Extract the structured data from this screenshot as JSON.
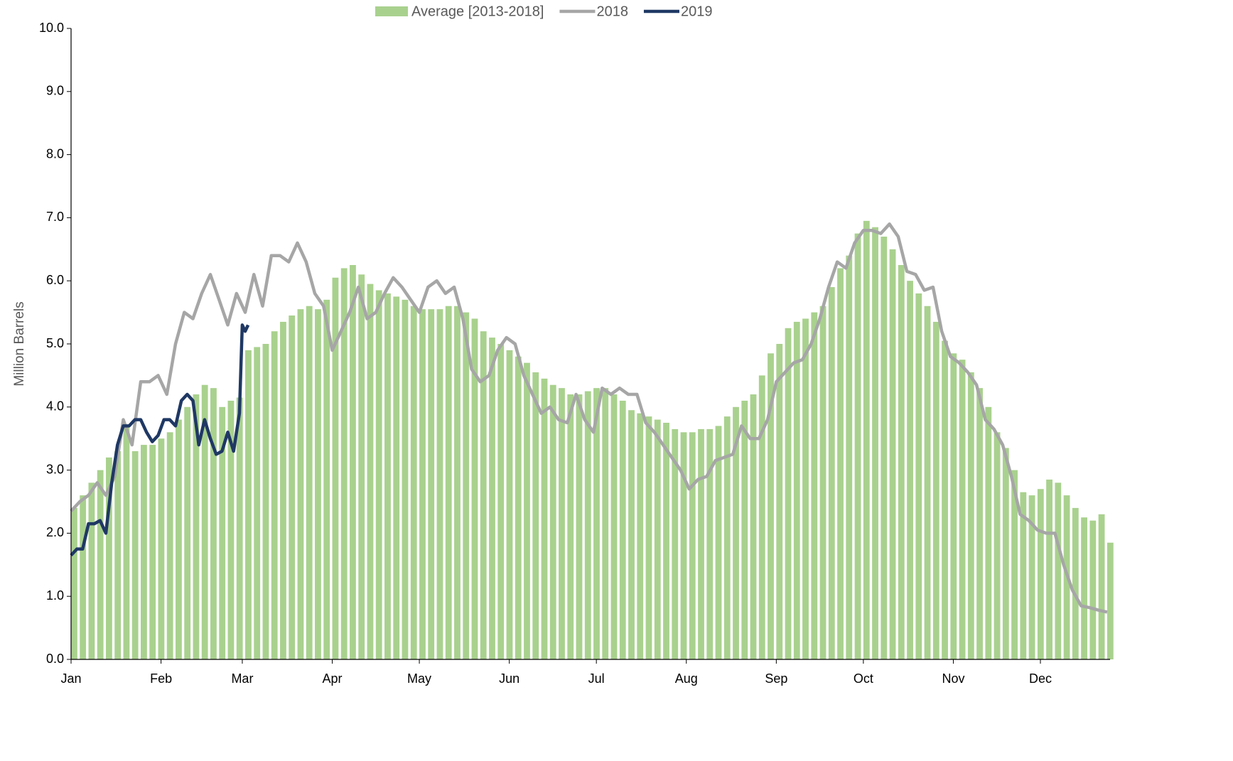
{
  "chart_data": {
    "type": "bar-line",
    "ylabel": "Million Barrels",
    "xlim": [
      0,
      358
    ],
    "xticks": [
      {
        "value": 0,
        "label": "Jan"
      },
      {
        "value": 31,
        "label": "Feb"
      },
      {
        "value": 59,
        "label": "Mar"
      },
      {
        "value": 90,
        "label": "Apr"
      },
      {
        "value": 120,
        "label": "May"
      },
      {
        "value": 151,
        "label": "Jun"
      },
      {
        "value": 181,
        "label": "Jul"
      },
      {
        "value": 212,
        "label": "Aug"
      },
      {
        "value": 243,
        "label": "Sep"
      },
      {
        "value": 273,
        "label": "Oct"
      },
      {
        "value": 304,
        "label": "Nov"
      },
      {
        "value": 334,
        "label": "Dec"
      }
    ],
    "ylim": [
      0,
      10
    ],
    "yticks": [
      {
        "value": 0,
        "label": "0.0"
      },
      {
        "value": 1,
        "label": "1.0"
      },
      {
        "value": 2,
        "label": "2.0"
      },
      {
        "value": 3,
        "label": "3.0"
      },
      {
        "value": 4,
        "label": "4.0"
      },
      {
        "value": 5,
        "label": "5.0"
      },
      {
        "value": 6,
        "label": "6.0"
      },
      {
        "value": 7,
        "label": "7.0"
      },
      {
        "value": 8,
        "label": "8.0"
      },
      {
        "value": 9,
        "label": "9.0"
      },
      {
        "value": 10,
        "label": "10.0"
      }
    ],
    "grid": false,
    "legend": "top",
    "series": [
      {
        "name": "Average [2013-2018]",
        "kind": "bar",
        "color": "#a9d18e",
        "x": [
          0,
          3,
          6,
          9,
          12,
          15,
          18,
          21,
          24,
          27,
          30,
          33,
          36,
          39,
          42,
          45,
          48,
          51,
          54,
          57,
          60,
          63,
          66,
          69,
          72,
          75,
          78,
          81,
          84,
          87,
          90,
          93,
          96,
          99,
          102,
          105,
          108,
          111,
          114,
          117,
          120,
          123,
          126,
          129,
          132,
          135,
          138,
          141,
          144,
          147,
          150,
          153,
          156,
          159,
          162,
          165,
          168,
          171,
          174,
          177,
          180,
          183,
          186,
          189,
          192,
          195,
          198,
          201,
          204,
          207,
          210,
          213,
          216,
          219,
          222,
          225,
          228,
          231,
          234,
          237,
          240,
          243,
          246,
          249,
          252,
          255,
          258,
          261,
          264,
          267,
          270,
          273,
          276,
          279,
          282,
          285,
          288,
          291,
          294,
          297,
          300,
          303,
          306,
          309,
          312,
          315,
          318,
          321,
          324,
          327,
          330,
          333,
          336,
          339,
          342,
          345,
          348,
          351,
          354,
          357
        ],
        "values": [
          2.4,
          2.6,
          2.8,
          3.0,
          3.2,
          3.3,
          3.7,
          3.3,
          3.4,
          3.4,
          3.5,
          3.6,
          3.8,
          4.0,
          4.2,
          4.35,
          4.3,
          4.0,
          4.1,
          4.15,
          4.9,
          4.95,
          5.0,
          5.2,
          5.35,
          5.45,
          5.55,
          5.6,
          5.55,
          5.7,
          6.05,
          6.2,
          6.25,
          6.1,
          5.95,
          5.85,
          5.8,
          5.75,
          5.7,
          5.6,
          5.55,
          5.55,
          5.55,
          5.6,
          5.6,
          5.5,
          5.4,
          5.2,
          5.1,
          5.0,
          4.9,
          4.8,
          4.7,
          4.55,
          4.45,
          4.35,
          4.3,
          4.2,
          4.2,
          4.25,
          4.3,
          4.3,
          4.2,
          4.1,
          3.95,
          3.9,
          3.85,
          3.8,
          3.75,
          3.65,
          3.6,
          3.6,
          3.65,
          3.65,
          3.7,
          3.85,
          4.0,
          4.1,
          4.2,
          4.5,
          4.85,
          5.0,
          5.25,
          5.35,
          5.4,
          5.5,
          5.6,
          5.9,
          6.2,
          6.4,
          6.75,
          6.95,
          6.85,
          6.7,
          6.5,
          6.25,
          6.0,
          5.8,
          5.6,
          5.35,
          5.05,
          4.85,
          4.75,
          4.55,
          4.3,
          4.0,
          3.6,
          3.35,
          3.0,
          2.65,
          2.6,
          2.7,
          2.85,
          2.8,
          2.6,
          2.4,
          2.25,
          2.2,
          2.3,
          1.85
        ]
      },
      {
        "name": "2018",
        "kind": "line",
        "color": "#a6a6a6",
        "x": [
          0,
          3,
          6,
          9,
          12,
          15,
          18,
          21,
          24,
          27,
          30,
          33,
          36,
          39,
          42,
          45,
          48,
          51,
          54,
          57,
          60,
          63,
          66,
          69,
          72,
          75,
          78,
          81,
          84,
          87,
          90,
          93,
          96,
          99,
          102,
          105,
          108,
          111,
          114,
          117,
          120,
          123,
          126,
          129,
          132,
          135,
          138,
          141,
          144,
          147,
          150,
          153,
          156,
          159,
          162,
          165,
          168,
          171,
          174,
          177,
          180,
          183,
          186,
          189,
          192,
          195,
          198,
          201,
          204,
          207,
          210,
          213,
          216,
          219,
          222,
          225,
          228,
          231,
          234,
          237,
          240,
          243,
          246,
          249,
          252,
          255,
          258,
          261,
          264,
          267,
          270,
          273,
          276,
          279,
          282,
          285,
          288,
          291,
          294,
          297,
          300,
          303,
          306,
          309,
          312,
          315,
          318,
          321,
          324,
          327,
          330,
          333,
          336,
          339,
          342,
          345,
          348,
          351,
          354,
          357
        ],
        "values": [
          2.35,
          2.5,
          2.6,
          2.8,
          2.6,
          2.9,
          3.8,
          3.4,
          4.4,
          4.4,
          4.5,
          4.2,
          5.0,
          5.5,
          5.4,
          5.8,
          6.1,
          5.7,
          5.3,
          5.8,
          5.5,
          6.1,
          5.6,
          6.4,
          6.4,
          6.3,
          6.6,
          6.3,
          5.8,
          5.6,
          4.9,
          5.2,
          5.5,
          5.9,
          5.4,
          5.5,
          5.8,
          6.05,
          5.9,
          5.7,
          5.5,
          5.9,
          6.0,
          5.8,
          5.9,
          5.4,
          4.6,
          4.4,
          4.5,
          4.9,
          5.1,
          5.0,
          4.5,
          4.2,
          3.9,
          4.0,
          3.8,
          3.75,
          4.2,
          3.8,
          3.6,
          4.3,
          4.2,
          4.3,
          4.2,
          4.2,
          3.75,
          3.6,
          3.4,
          3.2,
          3.0,
          2.7,
          2.85,
          2.9,
          3.15,
          3.2,
          3.25,
          3.7,
          3.5,
          3.5,
          3.8,
          4.4,
          4.55,
          4.7,
          4.75,
          5.0,
          5.4,
          5.9,
          6.3,
          6.2,
          6.6,
          6.8,
          6.8,
          6.75,
          6.9,
          6.7,
          6.15,
          6.1,
          5.85,
          5.9,
          5.2,
          4.8,
          4.7,
          4.55,
          4.35,
          3.8,
          3.65,
          3.4,
          2.9,
          2.3,
          2.2,
          2.05,
          2.0,
          2.0,
          1.5,
          1.1,
          0.85,
          0.82,
          0.78,
          0.75
        ]
      },
      {
        "name": "2019",
        "kind": "line",
        "color": "#1f3864",
        "x": [
          0,
          2,
          4,
          6,
          8,
          10,
          12,
          14,
          16,
          18,
          20,
          22,
          24,
          26,
          28,
          30,
          32,
          34,
          36,
          38,
          40,
          42,
          44,
          46,
          48,
          50,
          52,
          54,
          56,
          58,
          59,
          60,
          61
        ],
        "values": [
          1.65,
          1.75,
          1.75,
          2.15,
          2.15,
          2.2,
          2.0,
          2.8,
          3.4,
          3.7,
          3.7,
          3.8,
          3.8,
          3.6,
          3.45,
          3.55,
          3.8,
          3.8,
          3.7,
          4.1,
          4.2,
          4.1,
          3.4,
          3.8,
          3.5,
          3.25,
          3.3,
          3.6,
          3.3,
          3.9,
          5.3,
          5.2,
          5.3
        ]
      }
    ]
  }
}
